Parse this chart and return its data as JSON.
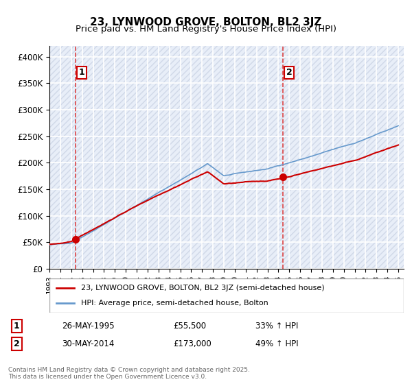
{
  "title": "23, LYNWOOD GROVE, BOLTON, BL2 3JZ",
  "subtitle": "Price paid vs. HM Land Registry's House Price Index (HPI)",
  "ylabel_ticks": [
    "£0",
    "£50K",
    "£100K",
    "£150K",
    "£200K",
    "£250K",
    "£300K",
    "£350K",
    "£400K"
  ],
  "ytick_values": [
    0,
    50000,
    100000,
    150000,
    200000,
    250000,
    300000,
    350000,
    400000
  ],
  "ylim": [
    0,
    420000
  ],
  "xlim_start": 1993.0,
  "xlim_end": 2025.5,
  "purchase1_x": 1995.4,
  "purchase1_y": 55500,
  "purchase1_label": "1",
  "purchase2_x": 2014.4,
  "purchase2_y": 173000,
  "purchase2_label": "2",
  "hatch_color": "#cccccc",
  "bg_color": "#f0f4ff",
  "grid_color": "#ffffff",
  "line_color_red": "#cc0000",
  "line_color_blue": "#6699cc",
  "dashed_red": "#dd4444",
  "legend_line1": "23, LYNWOOD GROVE, BOLTON, BL2 3JZ (semi-detached house)",
  "legend_line2": "HPI: Average price, semi-detached house, Bolton",
  "annotation1_date": "26-MAY-1995",
  "annotation1_price": "£55,500",
  "annotation1_hpi": "33% ↑ HPI",
  "annotation2_date": "30-MAY-2014",
  "annotation2_price": "£173,000",
  "annotation2_hpi": "49% ↑ HPI",
  "footer": "Contains HM Land Registry data © Crown copyright and database right 2025.\nThis data is licensed under the Open Government Licence v3.0.",
  "title_fontsize": 11,
  "subtitle_fontsize": 9.5
}
